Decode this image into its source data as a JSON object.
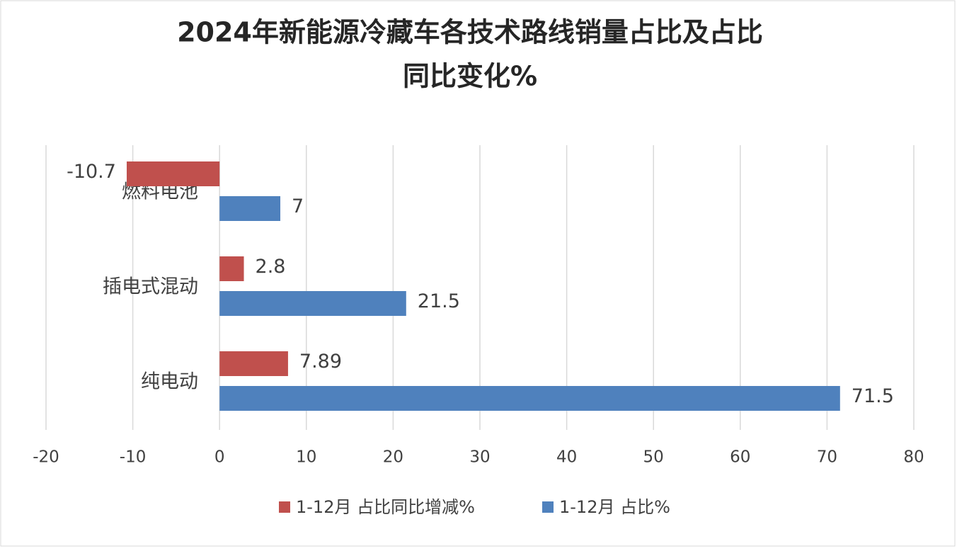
{
  "chart_data": {
    "type": "hbar",
    "title": [
      "2024年新能源冷藏车各技术路线销量占比及占比",
      "同比变化%"
    ],
    "categories": [
      "燃料电池",
      "插电式混动",
      "纯电动"
    ],
    "series": [
      {
        "name": "1-12月 占比同比增减%",
        "color": "#c0504d",
        "values": [
          -10.7,
          2.8,
          7.89
        ]
      },
      {
        "name": "1-12月 占比%",
        "color": "#4f81bd",
        "values": [
          7,
          21.5,
          71.5
        ]
      }
    ],
    "xlim": [
      -20,
      80
    ],
    "xticks": [
      -20,
      -10,
      0,
      10,
      20,
      30,
      40,
      50,
      60,
      70,
      80
    ],
    "grid": true,
    "legend": "bottom"
  }
}
